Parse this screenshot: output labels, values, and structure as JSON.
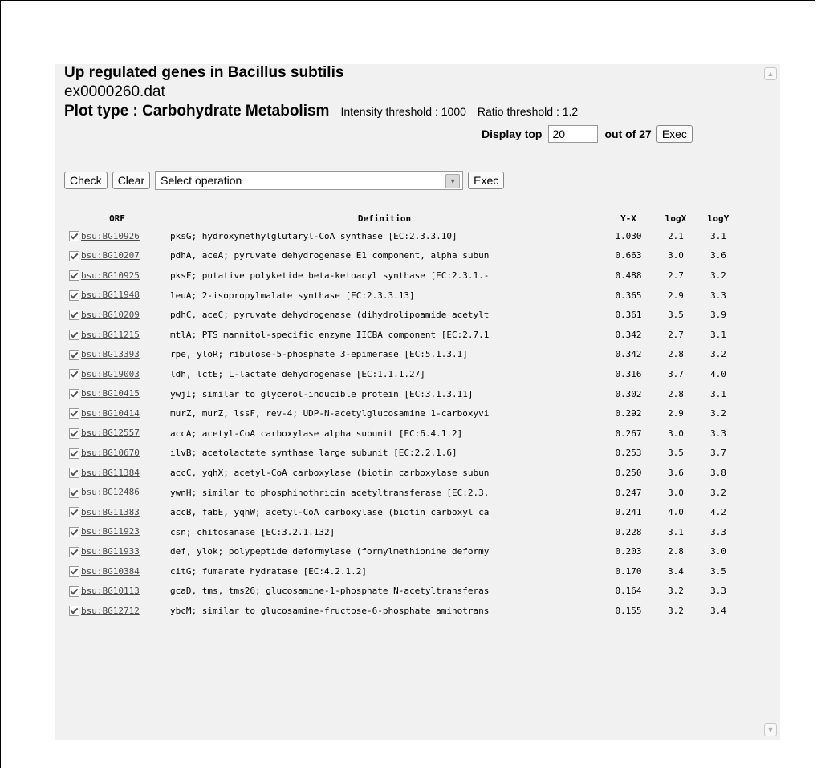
{
  "header": {
    "title": "Up regulated genes in Bacillus subtilis",
    "filename": "ex0000260.dat",
    "plot_type": "Plot type : Carbohydrate Metabolism",
    "intensity_threshold": "Intensity threshold : 1000",
    "ratio_threshold": "Ratio threshold : 1.2"
  },
  "display": {
    "label": "Display top",
    "value": "20",
    "out_of": "out of 27",
    "exec_label": "Exec"
  },
  "toolbar": {
    "check_label": "Check",
    "clear_label": "Clear",
    "operation_selected": "Select operation",
    "exec_label": "Exec"
  },
  "table": {
    "headers": [
      "ORF",
      "Definition",
      "Y-X",
      "logX",
      "logY"
    ],
    "rows": [
      {
        "orf": "bsu:BG10926",
        "def": "pksG; hydroxymethylglutaryl-CoA synthase [EC:2.3.3.10]",
        "yx": "1.030",
        "logx": "2.1",
        "logy": "3.1"
      },
      {
        "orf": "bsu:BG10207",
        "def": "pdhA, aceA; pyruvate dehydrogenase E1 component, alpha subun",
        "yx": "0.663",
        "logx": "3.0",
        "logy": "3.6"
      },
      {
        "orf": "bsu:BG10925",
        "def": "pksF; putative polyketide beta-ketoacyl synthase [EC:2.3.1.-",
        "yx": "0.488",
        "logx": "2.7",
        "logy": "3.2"
      },
      {
        "orf": "bsu:BG11948",
        "def": "leuA; 2-isopropylmalate synthase [EC:2.3.3.13]",
        "yx": "0.365",
        "logx": "2.9",
        "logy": "3.3"
      },
      {
        "orf": "bsu:BG10209",
        "def": "pdhC, aceC; pyruvate dehydrogenase (dihydrolipoamide acetylt",
        "yx": "0.361",
        "logx": "3.5",
        "logy": "3.9"
      },
      {
        "orf": "bsu:BG11215",
        "def": "mtlA; PTS mannitol-specific enzyme IICBA component [EC:2.7.1",
        "yx": "0.342",
        "logx": "2.7",
        "logy": "3.1"
      },
      {
        "orf": "bsu:BG13393",
        "def": "rpe, yloR; ribulose-5-phosphate 3-epimerase [EC:5.1.3.1]",
        "yx": "0.342",
        "logx": "2.8",
        "logy": "3.2"
      },
      {
        "orf": "bsu:BG19003",
        "def": "ldh, lctE; L-lactate dehydrogenase [EC:1.1.1.27]",
        "yx": "0.316",
        "logx": "3.7",
        "logy": "4.0"
      },
      {
        "orf": "bsu:BG10415",
        "def": "ywjI; similar to glycerol-inducible protein [EC:3.1.3.11]",
        "yx": "0.302",
        "logx": "2.8",
        "logy": "3.1"
      },
      {
        "orf": "bsu:BG10414",
        "def": "murZ, murZ, lssF, rev-4; UDP-N-acetylglucosamine 1-carboxyvi",
        "yx": "0.292",
        "logx": "2.9",
        "logy": "3.2"
      },
      {
        "orf": "bsu:BG12557",
        "def": "accA; acetyl-CoA carboxylase alpha subunit [EC:6.4.1.2]",
        "yx": "0.267",
        "logx": "3.0",
        "logy": "3.3"
      },
      {
        "orf": "bsu:BG10670",
        "def": "ilvB; acetolactate synthase large subunit [EC:2.2.1.6]",
        "yx": "0.253",
        "logx": "3.5",
        "logy": "3.7"
      },
      {
        "orf": "bsu:BG11384",
        "def": "accC, yqhX; acetyl-CoA carboxylase (biotin carboxylase subun",
        "yx": "0.250",
        "logx": "3.6",
        "logy": "3.8"
      },
      {
        "orf": "bsu:BG12486",
        "def": "ywnH; similar to phosphinothricin acetyltransferase [EC:2.3.",
        "yx": "0.247",
        "logx": "3.0",
        "logy": "3.2"
      },
      {
        "orf": "bsu:BG11383",
        "def": "accB, fabE, yqhW; acetyl-CoA carboxylase (biotin carboxyl ca",
        "yx": "0.241",
        "logx": "4.0",
        "logy": "4.2"
      },
      {
        "orf": "bsu:BG11923",
        "def": "csn; chitosanase [EC:3.2.1.132]",
        "yx": "0.228",
        "logx": "3.1",
        "logy": "3.3"
      },
      {
        "orf": "bsu:BG11933",
        "def": "def, ylok; polypeptide deformylase (formylmethionine deformy",
        "yx": "0.203",
        "logx": "2.8",
        "logy": "3.0"
      },
      {
        "orf": "bsu:BG10384",
        "def": "citG; fumarate hydratase [EC:4.2.1.2]",
        "yx": "0.170",
        "logx": "3.4",
        "logy": "3.5"
      },
      {
        "orf": "bsu:BG10113",
        "def": "gcaD, tms, tms26; glucosamine-1-phosphate N-acetyltransferas",
        "yx": "0.164",
        "logx": "3.2",
        "logy": "3.3"
      },
      {
        "orf": "bsu:BG12712",
        "def": "ybcM; similar to glucosamine-fructose-6-phosphate aminotrans",
        "yx": "0.155",
        "logx": "3.2",
        "logy": "3.4"
      }
    ]
  }
}
